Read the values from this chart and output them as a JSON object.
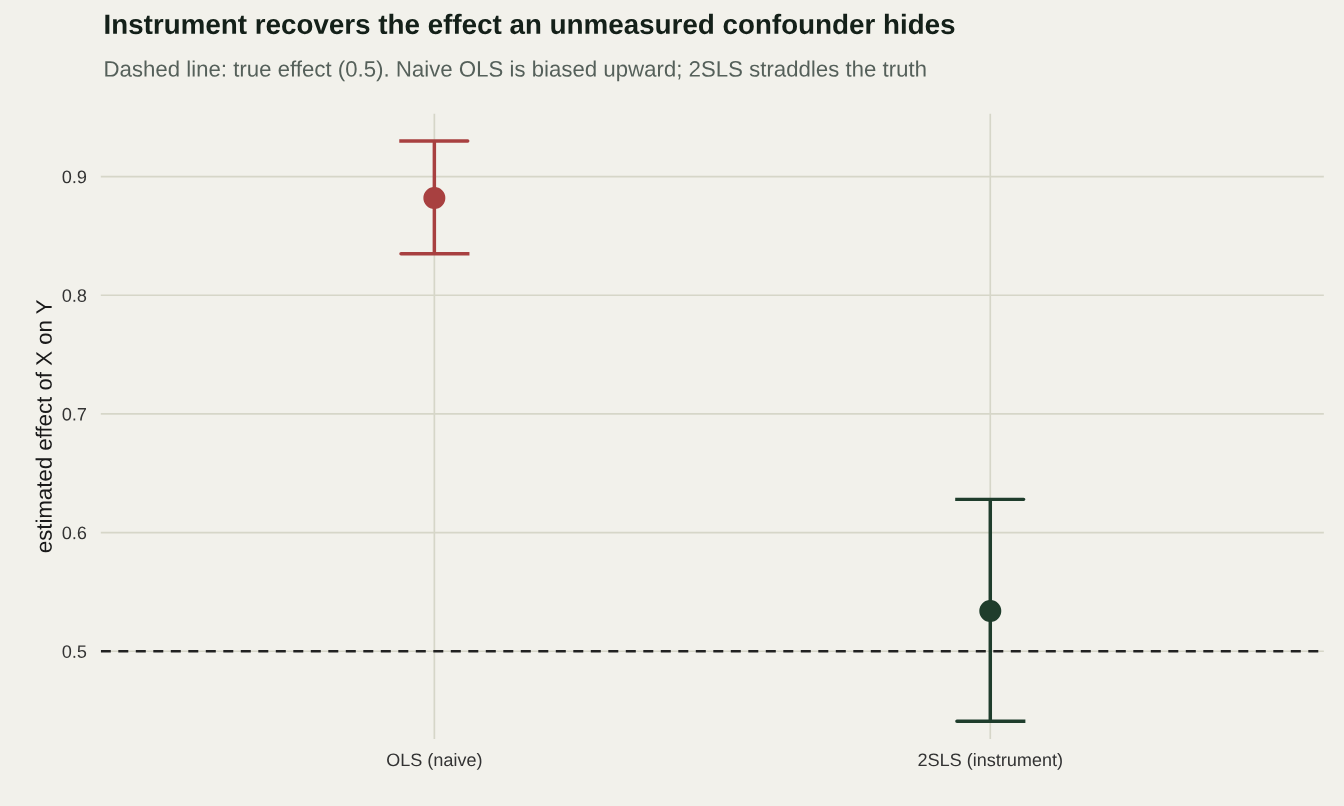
{
  "chart_data": {
    "type": "scatter",
    "title": "Instrument recovers the effect an unmeasured confounder hides",
    "subtitle": "Dashed line: true effect (0.5). Naive OLS is biased upward; 2SLS straddles the truth",
    "ylabel": "estimated effect of X on Y",
    "categories": [
      "OLS (naive)",
      "2SLS (instrument)"
    ],
    "values": [
      0.882,
      0.534
    ],
    "errors": [
      [
        0.835,
        0.93
      ],
      [
        0.441,
        0.628
      ]
    ],
    "colors": [
      "#a84040",
      "#1f3d2c"
    ],
    "ylim": [
      0.426,
      0.953
    ],
    "yticks": [
      0.5,
      0.6,
      0.7,
      0.8,
      0.9
    ],
    "ref_lines": [
      {
        "axis": "y",
        "value": 0.5,
        "color": "#222222",
        "line_style": "dashed"
      }
    ],
    "grid": true,
    "marker": "circle",
    "legend": false
  }
}
